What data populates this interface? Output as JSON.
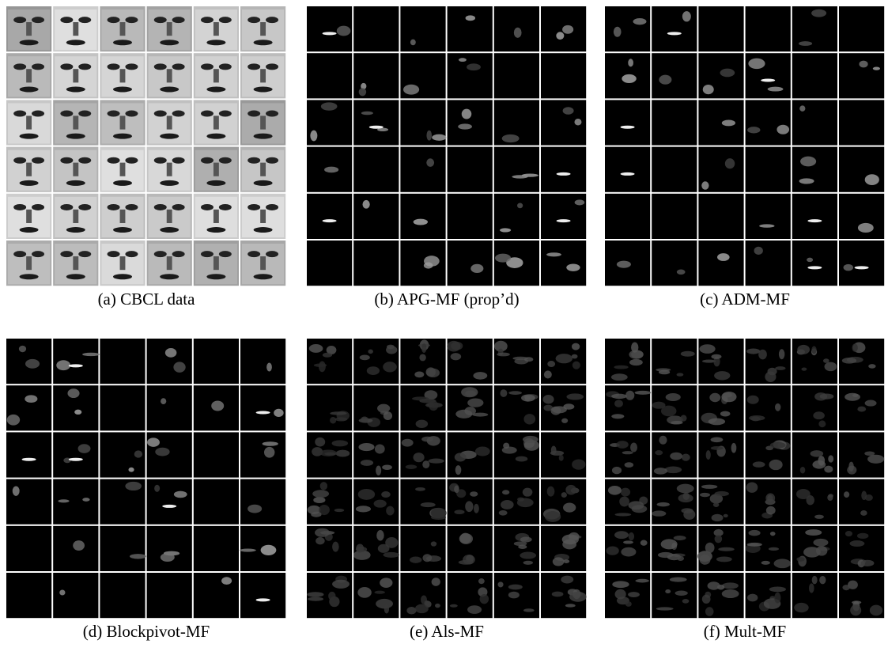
{
  "panels": [
    {
      "caption": "(a) CBCL data"
    },
    {
      "caption": "(b) APG-MF (prop’d)"
    },
    {
      "caption": "(c) ADM-MF"
    },
    {
      "caption": "(d) Blockpivot-MF"
    },
    {
      "caption": "(e) Als-MF"
    },
    {
      "caption": "(f) Mult-MF"
    }
  ]
}
